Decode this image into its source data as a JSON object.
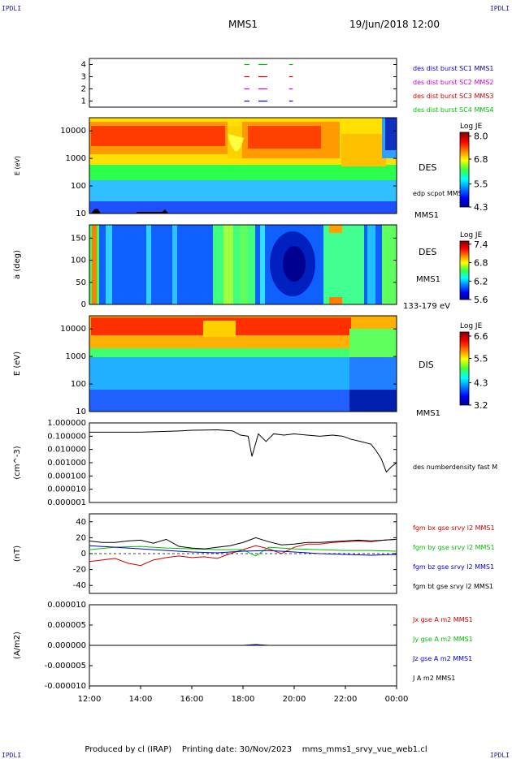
{
  "header": {
    "corner_label": "IPDLI",
    "spacecraft": "MMS1",
    "date_time": "19/Jun/2018 12:00"
  },
  "footer": {
    "produced_by": "Produced by cl (IRAP)",
    "printing_date": "Printing date: 30/Nov/2023",
    "script_name": "mms_mms1_srvy_vue_web1.cl"
  },
  "colors": {
    "red": "#cc0000",
    "green": "#00c000",
    "blue": "#0000cc",
    "magenta": "#cc00cc",
    "black": "#000000"
  },
  "chart_data": [
    {
      "type": "timeline",
      "yticks": [
        "4",
        "3",
        "2",
        "1"
      ],
      "ylim": [
        0.5,
        4.5
      ],
      "series": [
        {
          "name": "des dist burst SC1 MMS1",
          "color": "#0000cc",
          "value": 1,
          "segments": [
            [
              18.05,
              18.25
            ],
            [
              18.6,
              18.95
            ],
            [
              19.8,
              19.95
            ]
          ]
        },
        {
          "name": "des dist burst SC2 MMS2",
          "color": "#cc00cc",
          "value": 2,
          "segments": [
            [
              18.05,
              18.25
            ],
            [
              18.6,
              18.95
            ],
            [
              19.8,
              19.95
            ]
          ]
        },
        {
          "name": "des dist burst SC3 MMS3",
          "color": "#cc0000",
          "value": 3,
          "segments": [
            [
              18.05,
              18.25
            ],
            [
              18.6,
              18.95
            ],
            [
              19.8,
              19.95
            ]
          ]
        },
        {
          "name": "des dist burst SC4 MMS4",
          "color": "#00c000",
          "value": 4,
          "segments": [
            [
              18.05,
              18.25
            ],
            [
              18.6,
              18.95
            ],
            [
              19.8,
              19.95
            ]
          ]
        }
      ]
    },
    {
      "type": "heatmap",
      "ylabel": "E (eV)",
      "yscale": "log",
      "ylim": [
        10,
        30000
      ],
      "yticks": [
        "10000",
        "1000",
        "100",
        "10"
      ],
      "label": "DES",
      "extra_label": "edp scpot MMS1",
      "sc_label": "MMS1",
      "colorbar": {
        "title": "Log JE",
        "min": 4.3,
        "max": 8.2,
        "ticks": [
          "8.0",
          "6.8",
          "5.5",
          "4.3"
        ]
      }
    },
    {
      "type": "heatmap",
      "ylabel": "a (deg)",
      "ylim": [
        0,
        180
      ],
      "yticks": [
        "150",
        "100",
        "50",
        "0"
      ],
      "label": "DES",
      "sc_label": "MMS1",
      "energy_label": "133-179 eV",
      "colorbar": {
        "title": "Log JE",
        "min": 5.6,
        "max": 7.5,
        "ticks": [
          "7.4",
          "6.8",
          "6.2",
          "5.6"
        ]
      }
    },
    {
      "type": "heatmap",
      "ylabel": "E (eV)",
      "yscale": "log",
      "ylim": [
        10,
        30000
      ],
      "yticks": [
        "10000",
        "1000",
        "100",
        "10"
      ],
      "label": "DIS",
      "sc_label": "MMS1",
      "colorbar": {
        "title": "Log JE",
        "min": 3.2,
        "max": 6.8,
        "ticks": [
          "6.6",
          "5.5",
          "4.3",
          "3.2"
        ]
      }
    },
    {
      "type": "line",
      "ylabel": "(cm^-3)",
      "yscale": "log",
      "ylim": [
        1e-06,
        1.0
      ],
      "yticks": [
        "1.000000",
        "0.100000",
        "0.010000",
        "0.001000",
        "0.000100",
        "0.000010",
        "0.000001"
      ],
      "series": [
        {
          "name": "des numberdensity fast M",
          "color": "#000000",
          "x": [
            12.0,
            14.0,
            15.5,
            16.0,
            17.0,
            17.6,
            17.9,
            18.2,
            18.35,
            18.6,
            18.9,
            19.2,
            19.6,
            20.0,
            20.5,
            21.0,
            21.5,
            21.9,
            22.2,
            22.6,
            23.0,
            23.2,
            23.4,
            23.6,
            23.8,
            24.0
          ],
          "y": [
            0.2,
            0.2,
            0.25,
            0.28,
            0.3,
            0.25,
            0.12,
            0.1,
            0.003,
            0.15,
            0.04,
            0.15,
            0.12,
            0.15,
            0.12,
            0.1,
            0.12,
            0.1,
            0.06,
            0.04,
            0.025,
            0.008,
            0.002,
            0.0002,
            0.0005,
            0.001
          ]
        }
      ]
    },
    {
      "type": "line",
      "ylabel": "(nT)",
      "ylim": [
        -50,
        50
      ],
      "yticks": [
        "40",
        "20",
        "0",
        "-20",
        "-40"
      ],
      "series": [
        {
          "name": "fgm bx gse srvy l2 MMS1",
          "color": "#cc0000",
          "x": [
            12.0,
            12.5,
            13.0,
            13.5,
            14.0,
            14.5,
            15.0,
            15.5,
            16.0,
            16.5,
            17.0,
            17.5,
            18.0,
            18.5,
            19.0,
            19.5,
            20.0,
            20.5,
            21.0,
            21.5,
            22.0,
            22.5,
            23.0,
            23.5,
            24.0
          ],
          "y": [
            -10,
            -8,
            -6,
            -12,
            -15,
            -8,
            -5,
            -3,
            -5,
            -4,
            -6,
            0,
            5,
            10,
            6,
            0,
            8,
            12,
            12,
            14,
            15,
            16,
            15,
            17,
            18
          ]
        },
        {
          "name": "fgm by gse srvy l2 MMS1",
          "color": "#00c000",
          "x": [
            12.0,
            13.0,
            14.0,
            15.0,
            16.0,
            17.0,
            18.0,
            18.5,
            19.0,
            20.0,
            21.0,
            22.0,
            23.0,
            24.0
          ],
          "y": [
            5,
            8,
            9,
            7,
            6,
            5,
            5,
            -3,
            8,
            6,
            5,
            4,
            4,
            3
          ]
        },
        {
          "name": "fgm bz gse srvy l2 MMS1",
          "color": "#0000cc",
          "x": [
            12.0,
            13.0,
            14.0,
            15.0,
            16.0,
            17.0,
            18.0,
            19.0,
            20.0,
            21.0,
            22.0,
            23.0,
            24.0
          ],
          "y": [
            10,
            8,
            6,
            4,
            2,
            1,
            3,
            4,
            2,
            0,
            -1,
            -2,
            -1
          ]
        },
        {
          "name": "fgm bt gse srvy l2 MMS1",
          "color": "#000000",
          "x": [
            12.0,
            12.5,
            13.0,
            13.5,
            14.0,
            14.5,
            15.0,
            15.5,
            16.0,
            16.5,
            17.0,
            17.5,
            18.0,
            18.5,
            19.0,
            19.5,
            20.0,
            20.5,
            21.0,
            21.5,
            22.0,
            22.5,
            23.0,
            23.5,
            24.0
          ],
          "y": [
            16,
            14,
            14,
            16,
            17,
            13,
            18,
            9,
            7,
            6,
            8,
            10,
            14,
            20,
            15,
            11,
            12,
            14,
            14,
            15,
            16,
            17,
            16,
            17,
            18
          ]
        }
      ]
    },
    {
      "type": "line",
      "ylabel": "(A/m2)",
      "ylim": [
        -1e-05,
        1e-05
      ],
      "yticks": [
        "0.000010",
        "0.000005",
        "0.000000",
        "-0.000005",
        "-0.000010"
      ],
      "xticks": [
        "12:00",
        "14:00",
        "16:00",
        "18:00",
        "20:00",
        "22:00",
        "00:00"
      ],
      "xlim": [
        12,
        24
      ],
      "series": [
        {
          "name": "Jx gse A m2 MMS1",
          "color": "#cc0000",
          "x": [
            12,
            24
          ],
          "y": [
            0,
            0
          ]
        },
        {
          "name": "Jy gse A m2 MMS1",
          "color": "#00c000",
          "x": [
            12,
            24
          ],
          "y": [
            0,
            0
          ]
        },
        {
          "name": "Jz gse A m2 MMS1",
          "color": "#0000cc",
          "x": [
            12,
            24
          ],
          "y": [
            0,
            0
          ]
        },
        {
          "name": "J A m2 MMS1",
          "color": "#000000",
          "x": [
            12,
            18,
            18.5,
            19,
            24
          ],
          "y": [
            0,
            0,
            2e-07,
            0,
            0
          ]
        }
      ]
    }
  ]
}
